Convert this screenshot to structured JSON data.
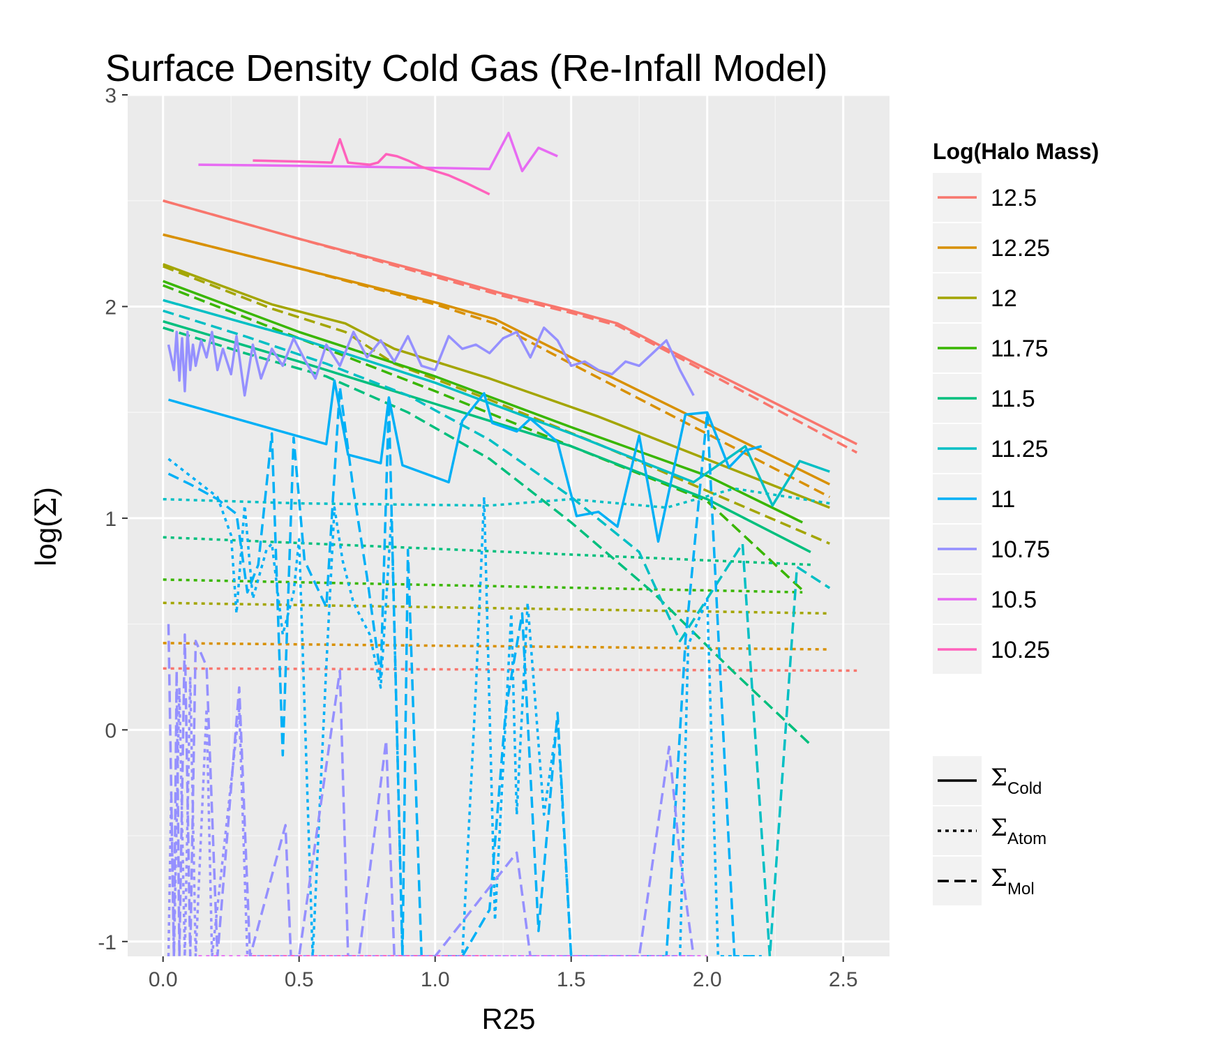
{
  "chart_data": {
    "type": "line",
    "title": "Surface Density Cold Gas (Re-Infall Model)",
    "xlabel": "R25",
    "ylabel_prefix": "log(",
    "ylabel_symbol": "Σ",
    "ylabel_suffix": ")",
    "xlim": [
      -0.13,
      2.67
    ],
    "ylim": [
      -1.07,
      3.0
    ],
    "x_ticks": [
      0.0,
      0.5,
      1.0,
      1.5,
      2.0,
      2.5
    ],
    "x_tick_labels": [
      "0.0",
      "0.5",
      "1.0",
      "1.5",
      "2.0",
      "2.5"
    ],
    "y_ticks": [
      -1,
      0,
      1,
      2,
      3
    ],
    "y_tick_labels": [
      "-1",
      "0",
      "1",
      "2",
      "3"
    ],
    "grid": true,
    "legend_position": "right",
    "color_legend": {
      "title": "Log(Halo Mass)",
      "entries": [
        {
          "label": "12.5",
          "color": "#F8766D"
        },
        {
          "label": "12.25",
          "color": "#D89000"
        },
        {
          "label": "12",
          "color": "#A3A500"
        },
        {
          "label": "11.75",
          "color": "#39B600"
        },
        {
          "label": "11.5",
          "color": "#00BF7D"
        },
        {
          "label": "11.25",
          "color": "#00BFC4"
        },
        {
          "label": "11",
          "color": "#00B0F6"
        },
        {
          "label": "10.75",
          "color": "#9590FF"
        },
        {
          "label": "10.5",
          "color": "#E76BF3"
        },
        {
          "label": "10.25",
          "color": "#FF62BC"
        }
      ]
    },
    "linetype_legend": [
      {
        "symbol": "Σ",
        "sub": "Cold",
        "dash": "solid"
      },
      {
        "symbol": "Σ",
        "sub": "Atom",
        "dash": "dotted"
      },
      {
        "symbol": "Σ",
        "sub": "Mol",
        "dash": "dashed"
      }
    ],
    "series": [
      {
        "mass": "12.5",
        "kind": "cold",
        "x": [
          0.0,
          0.5,
          1.0,
          1.25,
          1.5,
          1.67,
          1.85,
          2.1,
          2.55
        ],
        "y": [
          2.5,
          2.32,
          2.15,
          2.06,
          1.98,
          1.92,
          1.8,
          1.64,
          1.35
        ]
      },
      {
        "mass": "12.5",
        "kind": "mol",
        "x": [
          0.0,
          0.5,
          1.0,
          1.25,
          1.5,
          1.67,
          1.85,
          2.1,
          2.55
        ],
        "y": [
          2.5,
          2.32,
          2.14,
          2.05,
          1.97,
          1.91,
          1.79,
          1.62,
          1.31
        ]
      },
      {
        "mass": "12.5",
        "kind": "atom",
        "x": [
          0.0,
          2.55
        ],
        "y": [
          0.29,
          0.28
        ]
      },
      {
        "mass": "12.25",
        "kind": "cold",
        "x": [
          0.0,
          0.5,
          1.0,
          1.22,
          1.5,
          2.45
        ],
        "y": [
          2.34,
          2.18,
          2.02,
          1.94,
          1.76,
          1.16
        ]
      },
      {
        "mass": "12.25",
        "kind": "mol",
        "x": [
          0.0,
          0.5,
          1.0,
          1.22,
          1.5,
          2.45
        ],
        "y": [
          2.34,
          2.18,
          2.01,
          1.92,
          1.73,
          1.1
        ]
      },
      {
        "mass": "12.25",
        "kind": "atom",
        "x": [
          0.0,
          2.45
        ],
        "y": [
          0.41,
          0.38
        ]
      },
      {
        "mass": "12",
        "kind": "cold",
        "x": [
          0.0,
          0.4,
          0.67,
          0.85,
          1.2,
          1.6,
          2.45
        ],
        "y": [
          2.2,
          2.01,
          1.92,
          1.8,
          1.66,
          1.48,
          1.05
        ]
      },
      {
        "mass": "12",
        "kind": "mol",
        "x": [
          0.0,
          0.4,
          0.67,
          0.85,
          1.2,
          1.6,
          2.45
        ],
        "y": [
          2.19,
          1.99,
          1.88,
          1.73,
          1.56,
          1.35,
          0.88
        ]
      },
      {
        "mass": "12",
        "kind": "atom",
        "x": [
          0.0,
          2.45
        ],
        "y": [
          0.6,
          0.55
        ]
      },
      {
        "mass": "11.75",
        "kind": "cold",
        "x": [
          0.0,
          0.5,
          1.0,
          1.5,
          2.0,
          2.35
        ],
        "y": [
          2.12,
          1.88,
          1.67,
          1.43,
          1.2,
          0.98
        ]
      },
      {
        "mass": "11.75",
        "kind": "mol",
        "x": [
          0.0,
          0.5,
          1.0,
          1.5,
          2.0,
          2.35
        ],
        "y": [
          2.1,
          1.85,
          1.6,
          1.34,
          1.08,
          0.66
        ]
      },
      {
        "mass": "11.75",
        "kind": "atom",
        "x": [
          0.0,
          2.35
        ],
        "y": [
          0.71,
          0.65
        ]
      },
      {
        "mass": "11.5",
        "kind": "cold",
        "x": [
          0.0,
          0.5,
          1.0,
          1.5,
          2.0,
          2.38
        ],
        "y": [
          1.93,
          1.74,
          1.54,
          1.34,
          1.09,
          0.84
        ]
      },
      {
        "mass": "11.5",
        "kind": "mol",
        "x": [
          0.0,
          0.3,
          0.6,
          0.9,
          1.2,
          1.5,
          1.8,
          2.1,
          2.38
        ],
        "y": [
          1.9,
          1.78,
          1.67,
          1.5,
          1.28,
          0.98,
          0.65,
          0.27,
          -0.07
        ]
      },
      {
        "mass": "11.5",
        "kind": "atom",
        "x": [
          0.0,
          2.38
        ],
        "y": [
          0.91,
          0.78
        ]
      },
      {
        "mass": "11.25",
        "kind": "cold",
        "x": [
          0.0,
          0.5,
          1.0,
          1.5,
          1.95,
          2.14,
          2.24,
          2.34,
          2.45
        ],
        "y": [
          2.03,
          1.85,
          1.64,
          1.4,
          1.17,
          1.34,
          1.06,
          1.27,
          1.22
        ]
      },
      {
        "mass": "11.25",
        "kind": "mol",
        "x": [
          0.0,
          0.3,
          0.6,
          0.9,
          1.2,
          1.5,
          1.75,
          1.9,
          2.13,
          2.23,
          2.33,
          2.45
        ],
        "y": [
          1.98,
          1.86,
          1.73,
          1.58,
          1.37,
          1.1,
          0.84,
          0.42,
          0.88,
          -1.07,
          0.77,
          0.67
        ]
      },
      {
        "mass": "11.25",
        "kind": "atom",
        "x": [
          0.0,
          0.5,
          1.2,
          1.5,
          1.85,
          2.1,
          2.45
        ],
        "y": [
          1.09,
          1.07,
          1.06,
          1.09,
          1.05,
          1.14,
          1.07
        ]
      },
      {
        "mass": "11",
        "kind": "cold",
        "x": [
          0.02,
          0.6,
          0.63,
          0.68,
          0.8,
          0.83,
          0.88,
          1.05,
          1.1,
          1.18,
          1.21,
          1.3,
          1.35,
          1.45,
          1.52,
          1.6,
          1.67,
          1.75,
          1.82,
          1.92,
          2.0,
          2.08,
          2.14,
          2.2
        ],
        "y": [
          1.56,
          1.35,
          1.65,
          1.3,
          1.26,
          1.57,
          1.25,
          1.17,
          1.46,
          1.59,
          1.45,
          1.41,
          1.47,
          1.36,
          1.01,
          1.03,
          0.96,
          1.39,
          0.89,
          1.49,
          1.5,
          1.24,
          1.32,
          1.34
        ]
      },
      {
        "mass": "11",
        "kind": "mol",
        "x": [
          0.02,
          0.1,
          0.2,
          0.27,
          0.31,
          0.35,
          0.4,
          0.44,
          0.48,
          0.52,
          0.6,
          0.65,
          0.7,
          0.75,
          0.8,
          0.83,
          0.88,
          0.9,
          0.95,
          1.05,
          1.1,
          1.2,
          1.26,
          1.32,
          1.38,
          1.45,
          1.5,
          1.55,
          1.65,
          1.75,
          1.85,
          1.92,
          2.0,
          2.1,
          2.2
        ],
        "y": [
          1.21,
          1.16,
          1.09,
          1.02,
          0.65,
          0.78,
          1.4,
          -0.12,
          1.38,
          0.8,
          0.58,
          1.62,
          1.13,
          0.72,
          0.25,
          1.55,
          -1.07,
          0.85,
          -1.07,
          -1.07,
          -1.07,
          -0.85,
          0.1,
          0.55,
          -0.95,
          0.08,
          -1.07,
          -1.07,
          -1.07,
          -1.07,
          -1.07,
          0.42,
          1.5,
          -1.07,
          -1.07
        ]
      },
      {
        "mass": "11",
        "kind": "atom",
        "x": [
          0.02,
          0.1,
          0.2,
          0.25,
          0.27,
          0.3,
          0.33,
          0.38,
          0.4,
          0.44,
          0.48,
          0.5,
          0.55,
          0.6,
          0.63,
          0.66,
          0.7,
          0.76,
          0.8,
          0.84,
          0.88,
          0.95,
          1.0,
          1.1,
          1.15,
          1.18,
          1.22,
          1.28,
          1.3,
          1.34,
          1.4,
          1.45,
          1.5,
          1.6,
          1.7,
          1.8,
          1.9,
          1.93,
          2.0,
          2.04,
          2.1,
          2.15,
          2.2
        ],
        "y": [
          1.28,
          1.2,
          1.1,
          0.92,
          0.55,
          1.06,
          0.62,
          0.85,
          0.88,
          0.45,
          0.65,
          0.9,
          -1.07,
          0.3,
          1.05,
          0.8,
          0.6,
          0.45,
          0.2,
          1.02,
          -1.07,
          -1.07,
          -1.07,
          -1.07,
          0.2,
          1.1,
          -0.9,
          0.55,
          -0.4,
          0.6,
          -0.4,
          0.05,
          -1.07,
          -1.07,
          -1.07,
          -1.07,
          -1.07,
          0.4,
          0.62,
          -1.07,
          -1.07,
          -1.07,
          -1.07
        ]
      },
      {
        "mass": "10.75",
        "kind": "cold",
        "x": [
          0.02,
          0.04,
          0.05,
          0.06,
          0.07,
          0.08,
          0.09,
          0.1,
          0.11,
          0.12,
          0.14,
          0.16,
          0.18,
          0.2,
          0.22,
          0.25,
          0.27,
          0.3,
          0.33,
          0.36,
          0.4,
          0.44,
          0.48,
          0.52,
          0.56,
          0.6,
          0.65,
          0.7,
          0.75,
          0.8,
          0.85,
          0.9,
          0.95,
          1.0,
          1.05,
          1.1,
          1.15,
          1.2,
          1.25,
          1.3,
          1.35,
          1.4,
          1.45,
          1.5,
          1.55,
          1.6,
          1.65,
          1.7,
          1.75,
          1.8,
          1.85,
          1.9,
          1.95
        ],
        "y": [
          1.82,
          1.7,
          1.88,
          1.65,
          1.85,
          1.6,
          1.88,
          1.7,
          1.82,
          1.72,
          1.84,
          1.76,
          1.88,
          1.7,
          1.8,
          1.68,
          1.86,
          1.58,
          1.82,
          1.66,
          1.8,
          1.72,
          1.85,
          1.75,
          1.66,
          1.82,
          1.72,
          1.88,
          1.76,
          1.84,
          1.74,
          1.86,
          1.72,
          1.7,
          1.86,
          1.8,
          1.82,
          1.78,
          1.85,
          1.88,
          1.76,
          1.9,
          1.84,
          1.72,
          1.74,
          1.7,
          1.68,
          1.74,
          1.72,
          1.78,
          1.84,
          1.7,
          1.58
        ]
      },
      {
        "mass": "10.75",
        "kind": "mol",
        "x": [
          0.02,
          0.04,
          0.05,
          0.06,
          0.08,
          0.1,
          0.12,
          0.16,
          0.2,
          0.28,
          0.32,
          0.45,
          0.47,
          0.5,
          0.65,
          0.68,
          0.72,
          0.82,
          0.85,
          0.88,
          0.92,
          1.0,
          1.3,
          1.35,
          1.38,
          1.5,
          1.55,
          1.65,
          1.75,
          1.86,
          1.9,
          1.95
        ],
        "y": [
          0.5,
          -1.07,
          0.28,
          -1.07,
          0.45,
          -1.07,
          0.42,
          0.3,
          -1.07,
          0.2,
          -1.07,
          -0.45,
          -1.07,
          -1.07,
          0.28,
          -1.07,
          -1.07,
          -0.05,
          -1.07,
          -1.07,
          -1.07,
          -1.07,
          -0.58,
          -1.07,
          -1.07,
          -1.07,
          -1.07,
          -1.07,
          -1.07,
          -0.08,
          -0.6,
          -1.07
        ]
      },
      {
        "mass": "10.75",
        "kind": "atom",
        "x": [
          0.02,
          0.03,
          0.04,
          0.06,
          0.08,
          0.1,
          0.12,
          0.16,
          0.18,
          0.28,
          0.31,
          0.5,
          0.6,
          0.7,
          0.8,
          1.0,
          1.2,
          1.5,
          1.7,
          1.95
        ],
        "y": [
          -1.07,
          -0.3,
          -1.07,
          0.2,
          -1.07,
          0.25,
          -1.07,
          0.1,
          -1.07,
          0.1,
          -1.07,
          -1.07,
          -1.07,
          -1.07,
          -1.07,
          -1.07,
          -1.07,
          -1.07,
          -1.07,
          -1.07
        ]
      },
      {
        "mass": "10.5",
        "kind": "cold",
        "x": [
          0.13,
          0.5,
          1.0,
          1.2,
          1.27,
          1.32,
          1.38,
          1.45
        ],
        "y": [
          2.67,
          2.665,
          2.655,
          2.65,
          2.82,
          2.64,
          2.75,
          2.71
        ]
      },
      {
        "mass": "10.5",
        "kind": "atom",
        "x": [
          0.13,
          2.0
        ],
        "y": [
          -1.07,
          -1.07
        ]
      },
      {
        "mass": "10.25",
        "kind": "cold",
        "x": [
          0.33,
          0.5,
          0.62,
          0.65,
          0.68,
          0.76,
          0.79,
          0.82,
          0.86,
          0.9,
          0.95,
          1.05,
          1.12,
          1.2
        ],
        "y": [
          2.69,
          2.685,
          2.68,
          2.79,
          2.68,
          2.67,
          2.68,
          2.72,
          2.71,
          2.69,
          2.66,
          2.62,
          2.58,
          2.53
        ]
      },
      {
        "mass": "10.25",
        "kind": "atom",
        "x": [
          0.33,
          1.2
        ],
        "y": [
          -1.07,
          -1.07
        ]
      }
    ]
  }
}
